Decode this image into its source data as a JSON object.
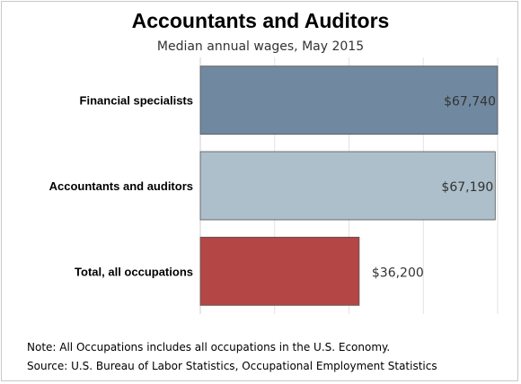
{
  "chart_data": {
    "type": "bar",
    "orientation": "horizontal",
    "title": "Accountants and Auditors",
    "subtitle": "Median annual wages, May 2015",
    "categories": [
      "Financial specialists",
      "Accountants and auditors",
      "Total, all occupations"
    ],
    "values": [
      67740,
      67190,
      36200
    ],
    "value_labels": [
      "$67,740",
      "$67,190",
      "$36,200"
    ],
    "colors": [
      "#7089a0",
      "#adbfcb",
      "#b44646"
    ],
    "xlim": [
      0,
      67740
    ],
    "grid": true,
    "legend": "none"
  },
  "notes": {
    "note": "Note: All Occupations includes all occupations in the U.S. Economy.",
    "source": "Source: U.S. Bureau of Labor Statistics, Occupational Employment Statistics"
  }
}
